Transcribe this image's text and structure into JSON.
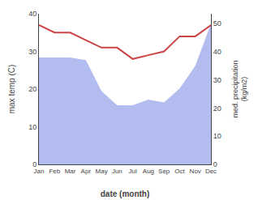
{
  "chart_data": {
    "type": "line",
    "categories": [
      "Jan",
      "Feb",
      "Mar",
      "Apr",
      "May",
      "Jun",
      "Jul",
      "Aug",
      "Sep",
      "Oct",
      "Nov",
      "Dec"
    ],
    "series": [
      {
        "type": "area",
        "color": "#b3bcee",
        "axis": "y2",
        "values": [
          38,
          38,
          38,
          37,
          26,
          21,
          21,
          23,
          22,
          27,
          35,
          50
        ]
      },
      {
        "type": "line",
        "color": "#cc4444",
        "values": [
          37,
          35,
          35,
          33,
          31,
          31,
          28,
          29,
          30,
          34,
          34,
          37
        ]
      }
    ],
    "xlabel": "date (month)",
    "ylabel": "max temp (C)",
    "y2label": "med. precipitation\n(kg/m2)",
    "ylim": [
      0,
      40
    ],
    "yticks": [
      0,
      10,
      20,
      30,
      40
    ],
    "y2lim": [
      0,
      53.5
    ],
    "y2ticks": [
      0,
      10,
      20,
      30,
      40,
      50
    ],
    "grid": false
  }
}
